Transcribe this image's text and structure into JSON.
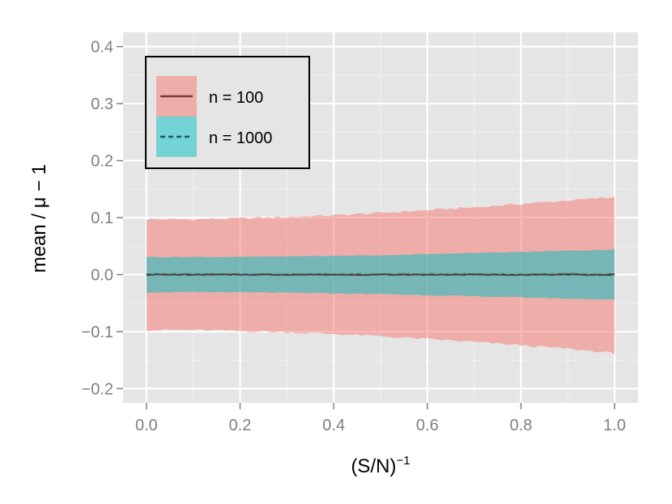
{
  "chart_data": {
    "type": "area",
    "xlabel": "(S/N)",
    "xlabel_superscript": "−1",
    "ylabel": "mean / μ  − 1",
    "xlim": [
      -0.05,
      1.05
    ],
    "ylim": [
      -0.225,
      0.425
    ],
    "x_ticks": [
      0.0,
      0.2,
      0.4,
      0.6,
      0.8,
      1.0
    ],
    "x_tick_labels": [
      "0.0",
      "0.2",
      "0.4",
      "0.6",
      "0.8",
      "1.0"
    ],
    "y_ticks": [
      -0.2,
      -0.1,
      0.0,
      0.1,
      0.2,
      0.3,
      0.4
    ],
    "y_tick_labels": [
      "−0.2",
      "−0.1",
      "0.0",
      "0.1",
      "0.2",
      "0.3",
      "0.4"
    ],
    "grid": true,
    "legend_position": "top-left",
    "series": [
      {
        "name": "n = 100",
        "line_style": "solid",
        "line_color": "#7a3a34",
        "fill_color": "#f8766d",
        "fill_opacity": 0.5,
        "x": [
          0.0,
          0.1,
          0.2,
          0.3,
          0.4,
          0.5,
          0.6,
          0.7,
          0.8,
          0.9,
          1.0
        ],
        "mean": [
          0.0,
          0.0,
          0.0,
          0.0,
          0.0,
          0.0,
          0.0,
          0.0,
          0.0,
          0.0,
          0.0
        ],
        "upper": [
          0.097,
          0.097,
          0.099,
          0.101,
          0.104,
          0.108,
          0.113,
          0.118,
          0.124,
          0.13,
          0.136
        ],
        "lower": [
          -0.097,
          -0.097,
          -0.099,
          -0.101,
          -0.104,
          -0.108,
          -0.113,
          -0.118,
          -0.124,
          -0.13,
          -0.138
        ]
      },
      {
        "name": "n = 1000",
        "line_style": "dashed",
        "line_color": "#1e5d5d",
        "fill_color": "#00bfc4",
        "fill_opacity": 0.5,
        "x": [
          0.0,
          0.1,
          0.2,
          0.3,
          0.4,
          0.5,
          0.6,
          0.7,
          0.8,
          0.9,
          1.0
        ],
        "mean": [
          0.0,
          0.0,
          0.0,
          0.0,
          0.0,
          0.0,
          0.0,
          0.0,
          0.0,
          0.0,
          0.0
        ],
        "upper": [
          0.031,
          0.031,
          0.031,
          0.032,
          0.033,
          0.034,
          0.036,
          0.038,
          0.04,
          0.042,
          0.044
        ],
        "lower": [
          -0.031,
          -0.031,
          -0.031,
          -0.032,
          -0.033,
          -0.034,
          -0.036,
          -0.038,
          -0.04,
          -0.042,
          -0.044
        ]
      }
    ]
  }
}
